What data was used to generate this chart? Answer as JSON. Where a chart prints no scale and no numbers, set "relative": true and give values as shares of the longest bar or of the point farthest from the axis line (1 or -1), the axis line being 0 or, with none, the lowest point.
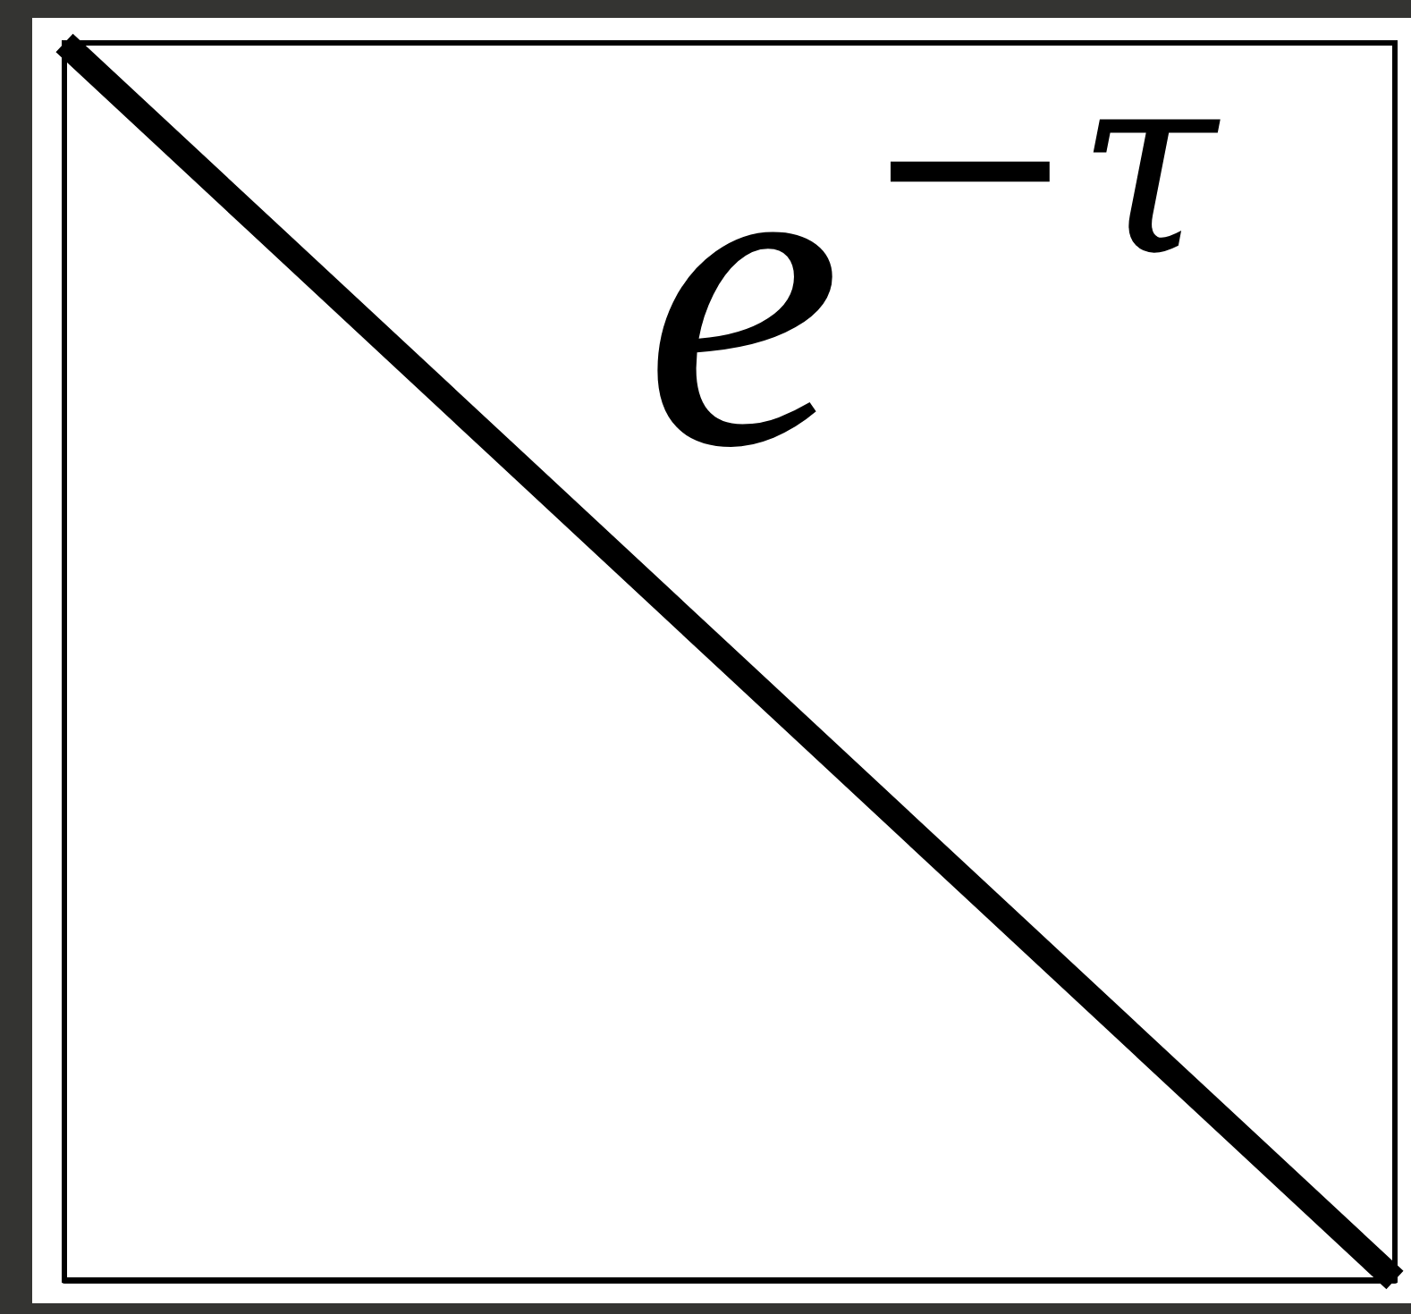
{
  "chart_data": {
    "type": "line",
    "categories": [
      null,
      null,
      null,
      null,
      null
    ],
    "series": [
      {
        "name": "e$^{−τ}$",
        "color": "#000000",
        "values": [
          1,
          0.75,
          0.5,
          0.25,
          0
        ]
      }
    ],
    "relative": true,
    "marker": "none",
    "line_style": "solid"
  }
}
